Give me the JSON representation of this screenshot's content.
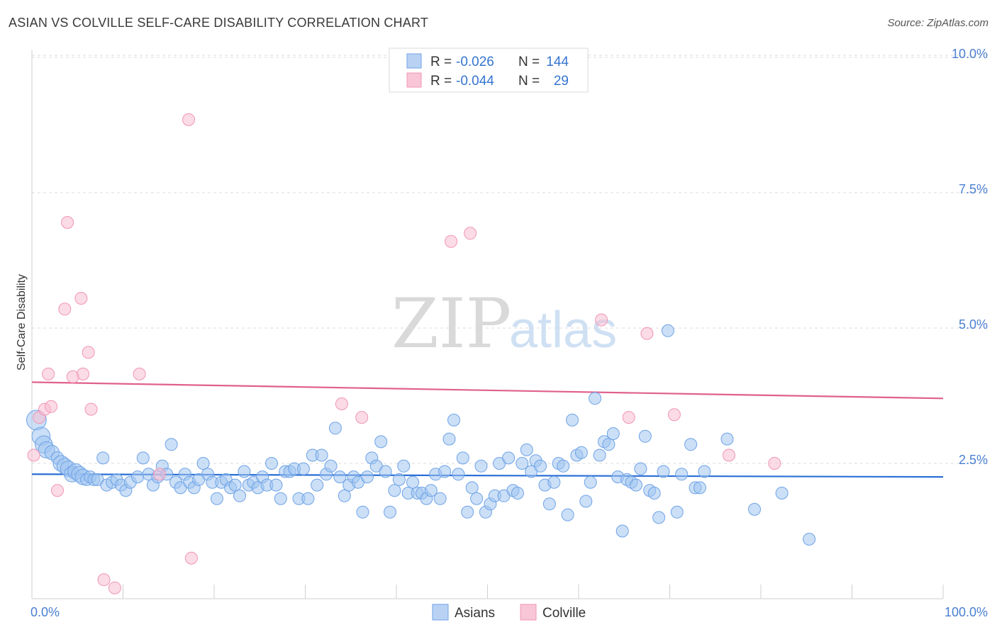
{
  "title": "ASIAN VS COLVILLE SELF-CARE DISABILITY CORRELATION CHART",
  "source": "Source: ZipAtlas.com",
  "watermark": {
    "zip": "ZIP",
    "atlas": "atlas"
  },
  "legend_top": {
    "rows": [
      {
        "r_label": "R =",
        "r_value": "-0.026",
        "n_label": "N =",
        "n_value": "144"
      },
      {
        "r_label": "R =",
        "r_value": "-0.044",
        "n_label": "N =",
        "n_value": "29"
      }
    ]
  },
  "chart_data": {
    "type": "scatter",
    "title": "ASIAN VS COLVILLE SELF-CARE DISABILITY CORRELATION CHART",
    "xlabel": "",
    "ylabel": "Self-Care Disability",
    "xlim": [
      0,
      100
    ],
    "ylim": [
      0,
      10.2
    ],
    "x_tick_labels": [
      "0.0%",
      "100.0%"
    ],
    "y_ticks": [
      2.5,
      5.0,
      7.5,
      10.0
    ],
    "y_tick_labels": [
      "2.5%",
      "5.0%",
      "7.5%",
      "10.0%"
    ],
    "colors": {
      "Asians": "#6fa3e6",
      "Colville": "#f095b5",
      "asian_line": "#2a6fd6",
      "colville_line": "#e0608e"
    },
    "series": [
      {
        "name": "Asians",
        "trend": {
          "x": [
            0,
            100
          ],
          "y": [
            2.3,
            2.25
          ]
        },
        "points": [
          [
            0.5,
            3.3
          ],
          [
            1,
            3.0
          ],
          [
            1.3,
            2.85
          ],
          [
            1.6,
            2.75
          ],
          [
            2.2,
            2.7
          ],
          [
            2.8,
            2.6
          ],
          [
            3.2,
            2.5
          ],
          [
            3.6,
            2.45
          ],
          [
            4,
            2.4
          ],
          [
            4.4,
            2.3
          ],
          [
            4.8,
            2.35
          ],
          [
            5.2,
            2.3
          ],
          [
            5.6,
            2.25
          ],
          [
            6,
            2.2
          ],
          [
            6.4,
            2.25
          ],
          [
            6.8,
            2.2
          ],
          [
            7.2,
            2.2
          ],
          [
            7.8,
            2.6
          ],
          [
            8.2,
            2.1
          ],
          [
            8.8,
            2.15
          ],
          [
            9.3,
            2.2
          ],
          [
            9.8,
            2.1
          ],
          [
            10.3,
            2.0
          ],
          [
            10.8,
            2.15
          ],
          [
            11.6,
            2.25
          ],
          [
            12.2,
            2.6
          ],
          [
            12.8,
            2.3
          ],
          [
            13.3,
            2.1
          ],
          [
            13.8,
            2.25
          ],
          [
            14.3,
            2.45
          ],
          [
            14.8,
            2.3
          ],
          [
            15.3,
            2.85
          ],
          [
            15.8,
            2.15
          ],
          [
            16.3,
            2.05
          ],
          [
            16.8,
            2.3
          ],
          [
            17.3,
            2.15
          ],
          [
            17.8,
            2.05
          ],
          [
            18.3,
            2.2
          ],
          [
            18.8,
            2.5
          ],
          [
            19.3,
            2.3
          ],
          [
            19.8,
            2.15
          ],
          [
            20.3,
            1.85
          ],
          [
            20.8,
            2.15
          ],
          [
            21.3,
            2.2
          ],
          [
            21.8,
            2.05
          ],
          [
            22.3,
            2.1
          ],
          [
            22.8,
            1.9
          ],
          [
            23.3,
            2.35
          ],
          [
            23.8,
            2.1
          ],
          [
            24.3,
            2.15
          ],
          [
            24.8,
            2.05
          ],
          [
            25.3,
            2.25
          ],
          [
            25.8,
            2.1
          ],
          [
            26.3,
            2.5
          ],
          [
            26.8,
            2.1
          ],
          [
            27.3,
            1.85
          ],
          [
            27.8,
            2.35
          ],
          [
            28.3,
            2.35
          ],
          [
            28.8,
            2.4
          ],
          [
            29.3,
            1.85
          ],
          [
            29.8,
            2.4
          ],
          [
            30.3,
            1.85
          ],
          [
            30.8,
            2.65
          ],
          [
            31.3,
            2.1
          ],
          [
            31.8,
            2.65
          ],
          [
            32.3,
            2.3
          ],
          [
            32.8,
            2.45
          ],
          [
            33.3,
            3.15
          ],
          [
            33.8,
            2.25
          ],
          [
            34.3,
            1.9
          ],
          [
            34.8,
            2.1
          ],
          [
            35.3,
            2.25
          ],
          [
            35.8,
            2.15
          ],
          [
            36.3,
            1.6
          ],
          [
            36.8,
            2.25
          ],
          [
            37.3,
            2.6
          ],
          [
            37.8,
            2.45
          ],
          [
            38.3,
            2.9
          ],
          [
            38.8,
            2.35
          ],
          [
            39.3,
            1.6
          ],
          [
            39.8,
            2.0
          ],
          [
            40.3,
            2.2
          ],
          [
            40.8,
            2.45
          ],
          [
            41.3,
            1.95
          ],
          [
            41.8,
            2.15
          ],
          [
            42.3,
            1.95
          ],
          [
            42.8,
            1.95
          ],
          [
            43.3,
            1.85
          ],
          [
            43.8,
            2.0
          ],
          [
            44.3,
            2.3
          ],
          [
            44.8,
            1.85
          ],
          [
            45.3,
            2.35
          ],
          [
            45.8,
            2.95
          ],
          [
            46.3,
            3.3
          ],
          [
            46.8,
            2.3
          ],
          [
            47.3,
            2.6
          ],
          [
            47.8,
            1.6
          ],
          [
            48.3,
            2.05
          ],
          [
            48.8,
            1.85
          ],
          [
            49.3,
            2.45
          ],
          [
            49.8,
            1.6
          ],
          [
            50.3,
            1.75
          ],
          [
            50.8,
            1.9
          ],
          [
            51.3,
            2.5
          ],
          [
            51.8,
            1.9
          ],
          [
            52.3,
            2.6
          ],
          [
            52.8,
            2.0
          ],
          [
            53.3,
            1.95
          ],
          [
            53.8,
            2.5
          ],
          [
            54.3,
            2.75
          ],
          [
            54.8,
            2.35
          ],
          [
            55.3,
            2.55
          ],
          [
            55.8,
            2.45
          ],
          [
            56.3,
            2.1
          ],
          [
            56.8,
            1.75
          ],
          [
            57.3,
            2.15
          ],
          [
            57.8,
            2.5
          ],
          [
            58.3,
            2.45
          ],
          [
            58.8,
            1.55
          ],
          [
            59.3,
            3.3
          ],
          [
            59.8,
            2.65
          ],
          [
            60.3,
            2.7
          ],
          [
            60.8,
            1.8
          ],
          [
            61.3,
            2.15
          ],
          [
            61.8,
            3.7
          ],
          [
            62.3,
            2.65
          ],
          [
            62.8,
            2.9
          ],
          [
            63.3,
            2.85
          ],
          [
            63.8,
            3.05
          ],
          [
            64.3,
            2.25
          ],
          [
            64.8,
            1.25
          ],
          [
            65.3,
            2.2
          ],
          [
            65.8,
            2.15
          ],
          [
            66.3,
            2.1
          ],
          [
            66.8,
            2.4
          ],
          [
            67.3,
            3.0
          ],
          [
            67.8,
            2.0
          ],
          [
            68.3,
            1.95
          ],
          [
            68.8,
            1.5
          ],
          [
            69.3,
            2.35
          ],
          [
            69.8,
            4.95
          ],
          [
            70.8,
            1.6
          ],
          [
            71.3,
            2.3
          ],
          [
            72.3,
            2.85
          ],
          [
            72.8,
            2.05
          ],
          [
            73.3,
            2.05
          ],
          [
            73.8,
            2.35
          ],
          [
            76.3,
            2.95
          ],
          [
            79.3,
            1.65
          ],
          [
            82.3,
            1.95
          ],
          [
            85.3,
            1.1
          ]
        ]
      },
      {
        "name": "Colville",
        "trend": {
          "x": [
            0,
            100
          ],
          "y": [
            4.0,
            3.7
          ]
        },
        "points": [
          [
            0.2,
            2.65
          ],
          [
            0.8,
            3.35
          ],
          [
            1.4,
            3.5
          ],
          [
            1.8,
            4.15
          ],
          [
            2.1,
            3.55
          ],
          [
            2.8,
            2.0
          ],
          [
            3.6,
            5.35
          ],
          [
            3.9,
            6.95
          ],
          [
            4.5,
            4.1
          ],
          [
            5.4,
            5.55
          ],
          [
            5.6,
            4.15
          ],
          [
            6.2,
            4.55
          ],
          [
            6.5,
            3.5
          ],
          [
            7.9,
            0.35
          ],
          [
            9.1,
            0.2
          ],
          [
            11.8,
            4.15
          ],
          [
            14,
            2.3
          ],
          [
            17.2,
            8.85
          ],
          [
            17.5,
            0.75
          ],
          [
            34,
            3.6
          ],
          [
            36.2,
            3.35
          ],
          [
            46,
            6.6
          ],
          [
            48.1,
            6.75
          ],
          [
            62.5,
            5.15
          ],
          [
            65.5,
            3.35
          ],
          [
            67.5,
            4.9
          ],
          [
            70.5,
            3.4
          ],
          [
            76.5,
            2.65
          ],
          [
            81.5,
            2.5
          ]
        ]
      }
    ]
  }
}
